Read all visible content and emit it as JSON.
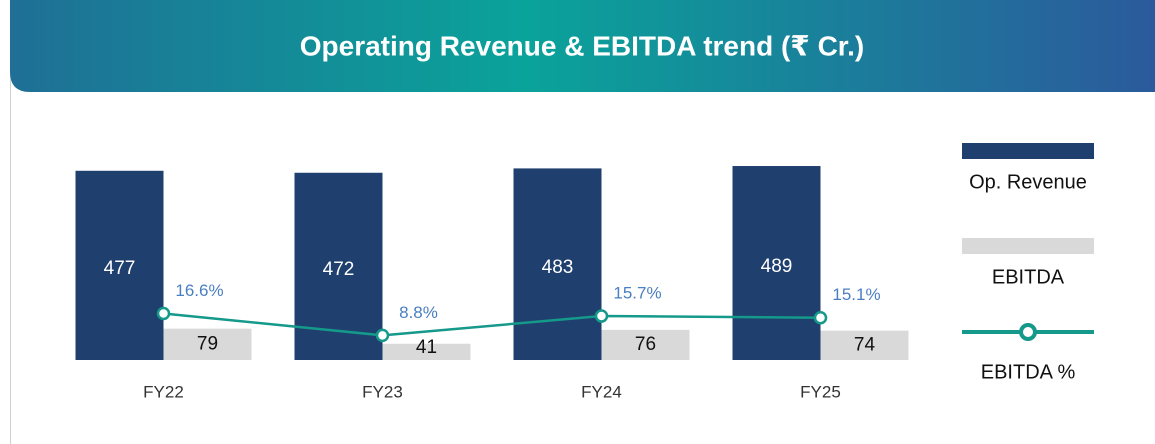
{
  "chart_data": {
    "type": "bar",
    "title": "Operating Revenue & EBITDA trend (₹ Cr.)",
    "categories": [
      "FY22",
      "FY23",
      "FY24",
      "FY25"
    ],
    "series": [
      {
        "name": "Op. Revenue",
        "color": "#1f3f6e",
        "values": [
          477,
          472,
          483,
          489
        ]
      },
      {
        "name": "EBITDA",
        "color": "#d9d9d9",
        "values": [
          79,
          41,
          76,
          74
        ]
      },
      {
        "name": "EBITDA %",
        "type": "line",
        "axis": "y2",
        "color": "#14998a",
        "values": [
          16.6,
          8.8,
          15.7,
          15.1
        ],
        "value_labels": [
          "16.6%",
          "8.8%",
          "15.7%",
          "15.1%"
        ]
      }
    ],
    "ylim": [
      0,
      600
    ],
    "y2lim": [
      0,
      85
    ],
    "legend": "right"
  }
}
